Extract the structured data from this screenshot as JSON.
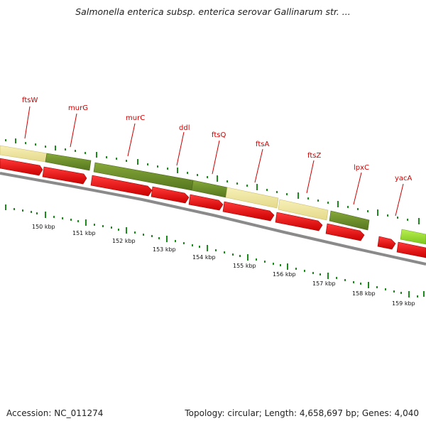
{
  "title": "Salmonella enterica subsp. enterica serovar Gallinarum str. ...",
  "accession": "Accession: NC_011274",
  "summary": "Topology: circular; Length: 4,658,697 bp; Genes: 4,040",
  "colors": {
    "label": "#cc0000",
    "cds_forward": "#ee0000",
    "tick": "#1d8a1d",
    "backbone": "#888888",
    "cog_pale": "#ede49b",
    "cog_olive": "#6b8f2a",
    "cog_lime": "#99dd33"
  },
  "gene_labels": [
    "ftsW",
    "murG",
    "murC",
    "ddl",
    "ftsQ",
    "ftsA",
    "ftsZ",
    "lpxC",
    "yacA"
  ],
  "scale_labels": [
    "150 kbp",
    "151 kbp",
    "152 kbp",
    "153 kbp",
    "154 kbp",
    "155 kbp",
    "156 kbp",
    "157 kbp",
    "158 kbp",
    "159 kbp"
  ]
}
